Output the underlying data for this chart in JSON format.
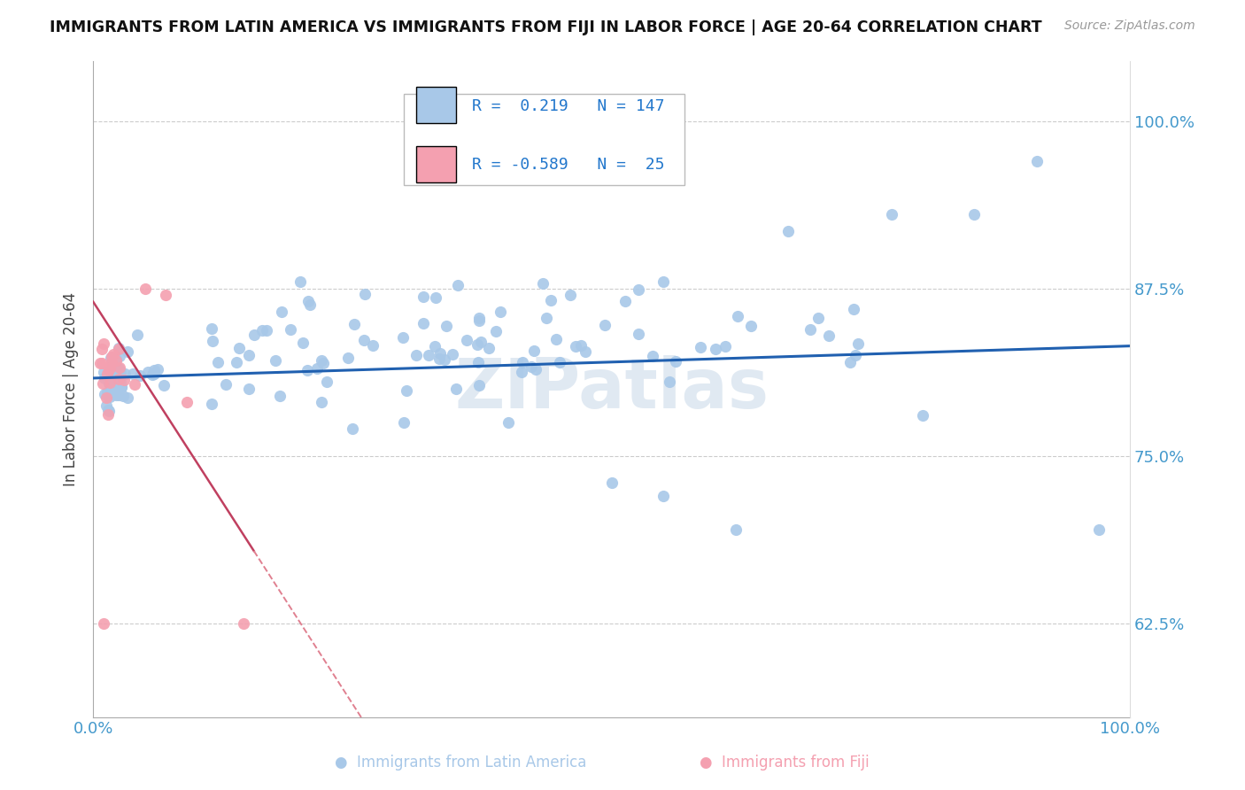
{
  "title": "IMMIGRANTS FROM LATIN AMERICA VS IMMIGRANTS FROM FIJI IN LABOR FORCE | AGE 20-64 CORRELATION CHART",
  "source_text": "Source: ZipAtlas.com",
  "ylabel": "In Labor Force | Age 20-64",
  "xlim": [
    0.0,
    1.0
  ],
  "ylim": [
    0.555,
    1.045
  ],
  "yticks": [
    0.625,
    0.75,
    0.875,
    1.0
  ],
  "ytick_labels": [
    "62.5%",
    "75.0%",
    "87.5%",
    "100.0%"
  ],
  "xtick_labels": [
    "0.0%",
    "100.0%"
  ],
  "r_blue": 0.219,
  "n_blue": 147,
  "r_pink": -0.589,
  "n_pink": 25,
  "blue_color": "#a8c8e8",
  "pink_color": "#f4a0b0",
  "blue_line_color": "#2060b0",
  "pink_line_color": "#c04060",
  "pink_line_color_dashed": "#e08090",
  "grid_color": "#cccccc",
  "watermark_text": "ZIPatlas",
  "watermark_color": "#c8d8e8",
  "blue_trend_x0": 0.0,
  "blue_trend_y0": 0.808,
  "blue_trend_x1": 1.0,
  "blue_trend_y1": 0.832,
  "pink_trend_x0": 0.0,
  "pink_trend_y0": 0.865,
  "pink_trend_x1": 0.2,
  "pink_trend_y1": 0.625,
  "legend_r_blue_str": "R =  0.219   N = 147",
  "legend_r_pink_str": "R = -0.589   N =  25"
}
